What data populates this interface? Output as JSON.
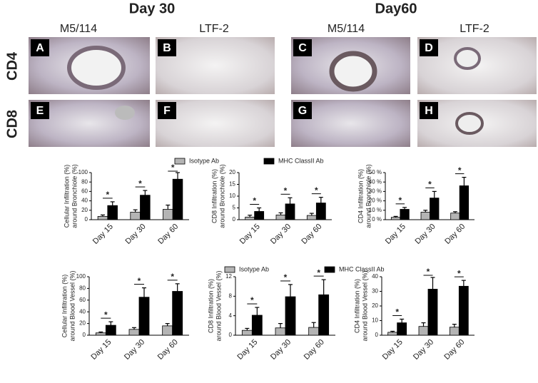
{
  "figure": {
    "headers": [
      "Day 30",
      "Day60"
    ],
    "subheaders": [
      "M5/114",
      "LTF-2",
      "M5/114",
      "LTF-2"
    ],
    "rows": [
      "CD4",
      "CD8"
    ],
    "letters": [
      "A",
      "B",
      "C",
      "D",
      "E",
      "F",
      "G",
      "H"
    ]
  },
  "chart_data": [
    {
      "type": "bar",
      "ylabel_lines": [
        "Cellular Infiltration (%)",
        "around Bronchiole (%)"
      ],
      "categories": [
        "Day 15",
        "Day 30",
        "Day 60"
      ],
      "ylim": [
        0,
        100
      ],
      "yticks": [
        0,
        20,
        40,
        60,
        80,
        100
      ],
      "series": [
        {
          "name": "Isotype Ab",
          "color": "#b4b4b4",
          "values": [
            7,
            16,
            22
          ],
          "errors": [
            3,
            5,
            9
          ]
        },
        {
          "name": "MHC ClassII Ab",
          "color": "#000000",
          "values": [
            30,
            52,
            86
          ],
          "errors": [
            8,
            10,
            14
          ]
        }
      ],
      "significance": [
        "*",
        "*",
        "*"
      ]
    },
    {
      "type": "bar",
      "ylabel_lines": [
        "CD8 Infiltration (%)",
        "around Bronchiole (%)"
      ],
      "categories": [
        "Day 15",
        "Day 30",
        "Day 60"
      ],
      "ylim": [
        0,
        20
      ],
      "yticks": [
        0,
        5,
        10,
        15,
        20
      ],
      "series": [
        {
          "color": "#b4b4b4",
          "values": [
            1.1,
            2.0,
            1.8
          ],
          "errors": [
            0.8,
            0.9,
            0.9
          ]
        },
        {
          "color": "#000000",
          "values": [
            3.5,
            6.7,
            7.1
          ],
          "errors": [
            1.5,
            2.6,
            2.4
          ]
        }
      ],
      "significance": [
        "*",
        "*",
        "*"
      ]
    },
    {
      "type": "bar",
      "ylabel_lines": [
        "CD4 Infiltration (%)",
        "around Bronchiole (%)"
      ],
      "categories": [
        "Day 15",
        "Day 30",
        "Day 60"
      ],
      "ylim": [
        0,
        50
      ],
      "yticks": [
        {
          "value": 0,
          "label": "0 %"
        },
        {
          "value": 10,
          "label": "10 %"
        },
        {
          "value": 20,
          "label": "20 %"
        },
        {
          "value": 30,
          "label": "30 %"
        },
        {
          "value": 40,
          "label": "40 %"
        },
        {
          "value": 50,
          "label": "50 %"
        }
      ],
      "series": [
        {
          "color": "#b4b4b4",
          "values": [
            2.5,
            8,
            7
          ],
          "errors": [
            1,
            2,
            1.5
          ]
        },
        {
          "color": "#000000",
          "values": [
            11,
            23,
            36
          ],
          "errors": [
            2,
            7,
            9
          ]
        }
      ],
      "significance": [
        "*",
        "*",
        "*"
      ]
    },
    {
      "type": "bar",
      "ylabel_lines": [
        "Cellular Infiltration (%)",
        "around Blood Vessel (%)"
      ],
      "categories": [
        "Day 15",
        "Day 30",
        "Day 60"
      ],
      "ylim": [
        0,
        100
      ],
      "yticks": [
        0,
        20,
        40,
        60,
        80,
        100
      ],
      "series": [
        {
          "name": "Isotype Ab",
          "color": "#b4b4b4",
          "values": [
            4,
            10,
            16
          ],
          "errors": [
            1.5,
            3,
            4
          ]
        },
        {
          "name": "MHC ClassII Ab",
          "color": "#000000",
          "values": [
            17,
            65,
            75
          ],
          "errors": [
            6,
            16,
            13
          ]
        }
      ],
      "significance": [
        "*",
        "*",
        "*"
      ]
    },
    {
      "type": "bar",
      "ylabel_lines": [
        "CD8 Infiltration (%)",
        "around Blood Vessel (%)"
      ],
      "categories": [
        "Day 15",
        "Day 30",
        "Day 60"
      ],
      "ylim": [
        0,
        12
      ],
      "yticks": [
        0,
        4,
        8,
        12
      ],
      "series": [
        {
          "color": "#b4b4b4",
          "values": [
            1.0,
            1.5,
            1.6
          ],
          "errors": [
            0.4,
            0.9,
            1.0
          ]
        },
        {
          "color": "#000000",
          "values": [
            4.1,
            7.9,
            8.3
          ],
          "errors": [
            1.6,
            2.5,
            3.1
          ]
        }
      ],
      "significance": [
        "*",
        "*",
        "*"
      ]
    },
    {
      "type": "bar",
      "ylabel_lines": [
        "CD4 Infiltration (%)",
        "around Blood Vessel (%)"
      ],
      "categories": [
        "Day 15",
        "Day 30",
        "Day 60"
      ],
      "ylim": [
        0,
        40
      ],
      "yticks": [
        0,
        10,
        20,
        30,
        40
      ],
      "series": [
        {
          "color": "#b4b4b4",
          "values": [
            2,
            6,
            5.5
          ],
          "errors": [
            0.7,
            2.5,
            2
          ]
        },
        {
          "color": "#000000",
          "values": [
            8.5,
            31.5,
            33.5
          ],
          "errors": [
            2.5,
            8,
            4
          ]
        }
      ],
      "significance": [
        "*",
        "*",
        "*"
      ]
    }
  ]
}
